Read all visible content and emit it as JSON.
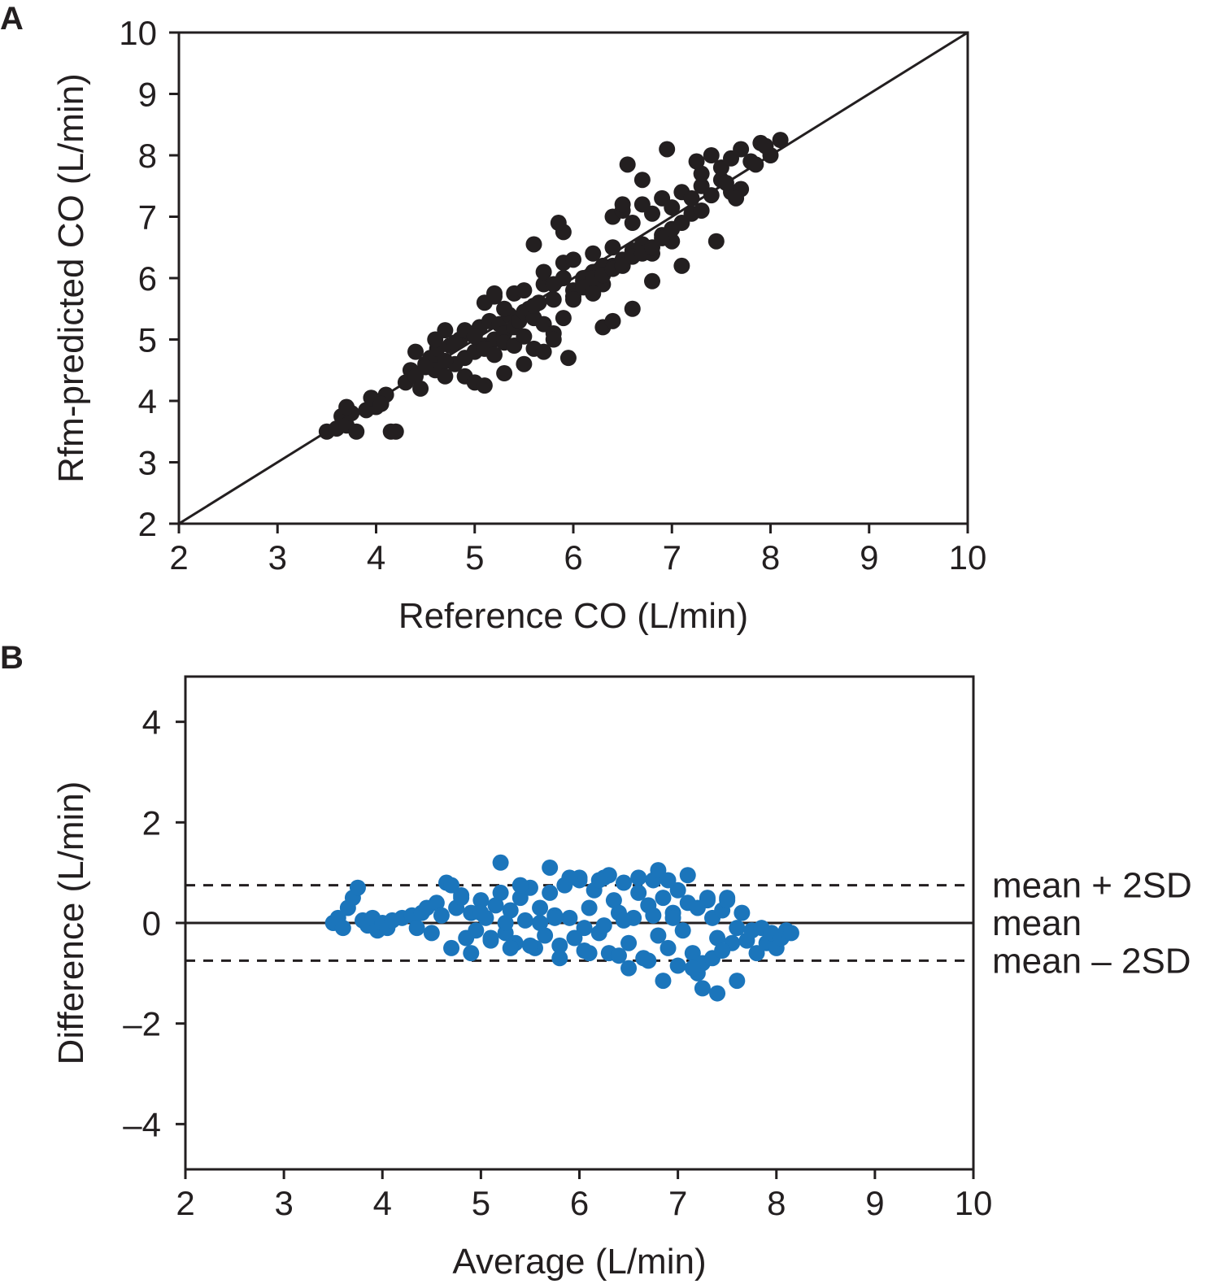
{
  "panels": [
    {
      "id": "A",
      "panel_label": "A",
      "point_color": "#231f20",
      "chart_data": {
        "type": "scatter",
        "title": "",
        "xlabel": "Reference CO (L/min)",
        "ylabel": "Rfm-predicted CO (L/min)",
        "xlim": [
          2,
          10
        ],
        "ylim": [
          2,
          10
        ],
        "xticks": [
          "2",
          "3",
          "4",
          "5",
          "6",
          "7",
          "8",
          "9",
          "10"
        ],
        "yticks": [
          "2",
          "3",
          "4",
          "5",
          "6",
          "7",
          "8",
          "9",
          "10"
        ],
        "grid": false,
        "legend": "none",
        "reference_lines": [
          {
            "kind": "identity",
            "x": [
              2,
              10
            ],
            "y": [
              2,
              10
            ],
            "style": "solid"
          }
        ],
        "points_note": "",
        "x": [
          3.5,
          3.6,
          3.65,
          3.7,
          3.75,
          3.8,
          3.9,
          4.0,
          4.1,
          4.15,
          4.2,
          3.7,
          3.95,
          4.05,
          4.3,
          4.35,
          4.4,
          4.45,
          4.5,
          4.55,
          4.6,
          4.62,
          4.7,
          4.75,
          4.8,
          4.85,
          4.9,
          4.95,
          5.0,
          5.05,
          5.1,
          5.15,
          5.2,
          5.25,
          5.3,
          5.35,
          5.4,
          5.45,
          5.5,
          5.55,
          5.6,
          5.65,
          4.6,
          4.7,
          4.8,
          4.9,
          5.0,
          5.1,
          5.2,
          5.3,
          5.4,
          5.5,
          5.6,
          5.7,
          5.8,
          5.9,
          5.1,
          5.2,
          5.3,
          5.4,
          5.5,
          5.6,
          5.7,
          5.8,
          5.9,
          6.0,
          6.1,
          6.2,
          6.3,
          6.4,
          5.7,
          5.8,
          5.9,
          6.0,
          6.1,
          6.2,
          6.3,
          6.4,
          6.5,
          6.6,
          6.7,
          6.8,
          6.9,
          7.0,
          6.0,
          6.1,
          6.2,
          6.3,
          6.4,
          6.5,
          6.6,
          6.7,
          6.8,
          6.9,
          7.0,
          7.1,
          7.2,
          7.3,
          6.4,
          6.5,
          6.6,
          6.7,
          6.8,
          6.9,
          7.0,
          7.1,
          7.2,
          7.3,
          7.4,
          7.5,
          7.6,
          7.7,
          7.3,
          7.4,
          7.5,
          7.6,
          7.7,
          7.8,
          7.9,
          8.0,
          8.1,
          7.85,
          7.95,
          7.65,
          7.55,
          4.9,
          5.0,
          5.1,
          5.3,
          5.5,
          5.7,
          5.8,
          6.3,
          6.4,
          6.6,
          6.0,
          6.2,
          6.8,
          7.1,
          5.6,
          5.9,
          6.5,
          6.7,
          5.2,
          4.7,
          4.5,
          5.85,
          6.55,
          6.95,
          7.25,
          7.45,
          4.4,
          5.95
        ],
        "y": [
          3.5,
          3.55,
          3.75,
          3.6,
          3.8,
          3.5,
          3.85,
          3.9,
          4.1,
          3.5,
          3.5,
          3.9,
          4.05,
          3.95,
          4.3,
          4.5,
          4.4,
          4.2,
          4.6,
          4.7,
          4.5,
          4.85,
          4.4,
          4.9,
          4.6,
          5.0,
          4.7,
          5.1,
          4.8,
          5.2,
          4.9,
          5.3,
          5.0,
          5.25,
          5.1,
          5.4,
          5.2,
          5.3,
          5.45,
          5.5,
          5.35,
          5.6,
          5.0,
          4.65,
          4.95,
          5.15,
          5.05,
          4.85,
          4.75,
          4.95,
          4.9,
          5.05,
          4.85,
          5.25,
          5.1,
          5.35,
          5.6,
          5.7,
          5.5,
          5.75,
          5.8,
          5.55,
          5.9,
          5.65,
          6.0,
          5.8,
          5.95,
          6.1,
          5.9,
          6.2,
          6.1,
          5.9,
          6.25,
          6.3,
          6.0,
          6.4,
          6.2,
          6.5,
          6.3,
          6.45,
          6.55,
          6.4,
          6.7,
          6.6,
          5.7,
          5.85,
          6.0,
          6.05,
          6.15,
          6.2,
          6.35,
          6.4,
          6.5,
          6.65,
          6.8,
          6.9,
          7.05,
          7.1,
          7.0,
          7.1,
          6.9,
          7.2,
          7.05,
          7.3,
          7.15,
          7.4,
          7.3,
          7.5,
          7.35,
          7.6,
          7.4,
          7.45,
          7.7,
          8.0,
          7.8,
          7.95,
          8.1,
          7.9,
          8.2,
          8.0,
          8.25,
          7.85,
          8.15,
          7.3,
          7.55,
          4.4,
          4.3,
          4.25,
          4.45,
          4.6,
          4.8,
          5.0,
          5.2,
          5.3,
          5.5,
          5.65,
          5.75,
          5.95,
          6.2,
          6.55,
          6.75,
          7.2,
          7.6,
          5.75,
          5.15,
          4.55,
          6.9,
          7.85,
          8.1,
          7.9,
          6.6,
          4.8,
          4.7
        ]
      }
    },
    {
      "id": "B",
      "panel_label": "B",
      "point_color": "#1b75bb",
      "chart_data": {
        "type": "scatter",
        "title": "",
        "xlabel": "Average (L/min)",
        "ylabel": "Difference (L/min)",
        "xlim": [
          2,
          10
        ],
        "ylim": [
          -4.9,
          4.9
        ],
        "xticks": [
          "2",
          "3",
          "4",
          "5",
          "6",
          "7",
          "8",
          "9",
          "10"
        ],
        "yticks": [
          {
            "value": -4,
            "label": "–4"
          },
          {
            "value": -2,
            "label": "–2"
          },
          {
            "value": 0,
            "label": "0"
          },
          {
            "value": 2,
            "label": "2"
          },
          {
            "value": 4,
            "label": "4"
          }
        ],
        "grid": false,
        "legend": "none",
        "reference_lines": [
          {
            "kind": "horizontal",
            "y": 0.75,
            "style": "dashed",
            "label": "mean + 2SD"
          },
          {
            "kind": "horizontal",
            "y": 0.0,
            "style": "solid",
            "label": "mean"
          },
          {
            "kind": "horizontal",
            "y": -0.75,
            "style": "dashed",
            "label": "mean – 2SD"
          }
        ],
        "x": [
          3.5,
          3.55,
          3.6,
          3.65,
          3.7,
          3.75,
          3.8,
          3.85,
          3.9,
          3.95,
          4.0,
          4.05,
          4.1,
          4.2,
          4.3,
          4.35,
          4.4,
          4.45,
          4.5,
          4.55,
          4.6,
          4.65,
          4.7,
          4.75,
          4.8,
          4.85,
          4.9,
          4.95,
          5.0,
          5.05,
          5.1,
          5.15,
          5.2,
          5.25,
          5.3,
          5.35,
          5.4,
          5.45,
          5.5,
          5.55,
          5.6,
          5.65,
          5.7,
          5.75,
          5.8,
          5.85,
          5.9,
          5.95,
          6.0,
          6.05,
          6.1,
          6.15,
          6.2,
          6.25,
          6.3,
          6.35,
          6.4,
          6.45,
          6.5,
          6.55,
          6.6,
          6.65,
          6.7,
          6.75,
          6.8,
          6.85,
          6.9,
          6.95,
          7.0,
          7.05,
          7.1,
          7.15,
          7.2,
          7.25,
          7.3,
          7.35,
          7.4,
          7.45,
          7.5,
          7.55,
          7.6,
          7.65,
          7.7,
          7.75,
          7.8,
          7.85,
          7.9,
          7.95,
          8.0,
          8.05,
          8.1,
          8.15,
          5.2,
          5.7,
          6.0,
          6.3,
          6.8,
          7.1,
          4.7,
          4.8,
          5.4,
          5.9,
          6.2,
          6.6,
          6.9,
          7.3,
          7.5,
          5.1,
          5.5,
          5.8,
          6.1,
          6.4,
          6.7,
          7.0,
          7.2,
          7.4,
          7.6,
          4.9,
          5.3,
          6.5,
          6.85,
          5.0,
          5.6,
          6.05,
          6.45,
          6.95,
          7.15,
          7.35,
          7.45,
          5.25,
          5.75,
          6.25,
          6.75,
          7.25
        ],
        "y": [
          0.0,
          0.1,
          -0.1,
          0.3,
          0.5,
          0.7,
          0.05,
          -0.05,
          0.1,
          -0.15,
          0.0,
          -0.1,
          0.05,
          0.1,
          0.15,
          -0.1,
          0.2,
          0.3,
          -0.2,
          0.4,
          0.15,
          0.8,
          -0.5,
          0.3,
          0.55,
          -0.3,
          0.2,
          -0.15,
          0.45,
          0.1,
          -0.35,
          0.35,
          0.6,
          -0.2,
          0.25,
          -0.4,
          0.5,
          0.05,
          0.7,
          -0.5,
          0.3,
          -0.25,
          0.6,
          0.15,
          -0.45,
          0.75,
          0.1,
          -0.3,
          0.85,
          -0.55,
          0.3,
          0.65,
          -0.2,
          0.9,
          -0.6,
          0.45,
          0.2,
          0.8,
          -0.4,
          0.1,
          0.6,
          -0.7,
          0.35,
          0.85,
          -0.25,
          0.5,
          -0.5,
          0.2,
          0.65,
          -0.15,
          0.4,
          -0.6,
          0.3,
          -0.8,
          0.45,
          0.1,
          -0.3,
          0.25,
          0.5,
          -0.4,
          -0.1,
          0.2,
          -0.35,
          -0.15,
          -0.6,
          -0.1,
          -0.4,
          -0.2,
          -0.5,
          -0.3,
          -0.15,
          -0.2,
          1.2,
          1.1,
          0.9,
          0.95,
          1.05,
          0.95,
          0.75,
          0.5,
          0.75,
          0.9,
          0.85,
          0.9,
          0.85,
          0.5,
          0.45,
          -0.3,
          -0.45,
          -0.7,
          -0.6,
          -0.65,
          -0.75,
          -0.85,
          -1.0,
          -1.4,
          -1.15,
          -0.6,
          -0.5,
          -0.9,
          -1.15,
          0.2,
          0.0,
          -0.1,
          0.05,
          0.1,
          -0.9,
          -0.7,
          -0.55,
          0.0,
          0.1,
          -0.05,
          0.15,
          -1.3
        ]
      }
    }
  ]
}
